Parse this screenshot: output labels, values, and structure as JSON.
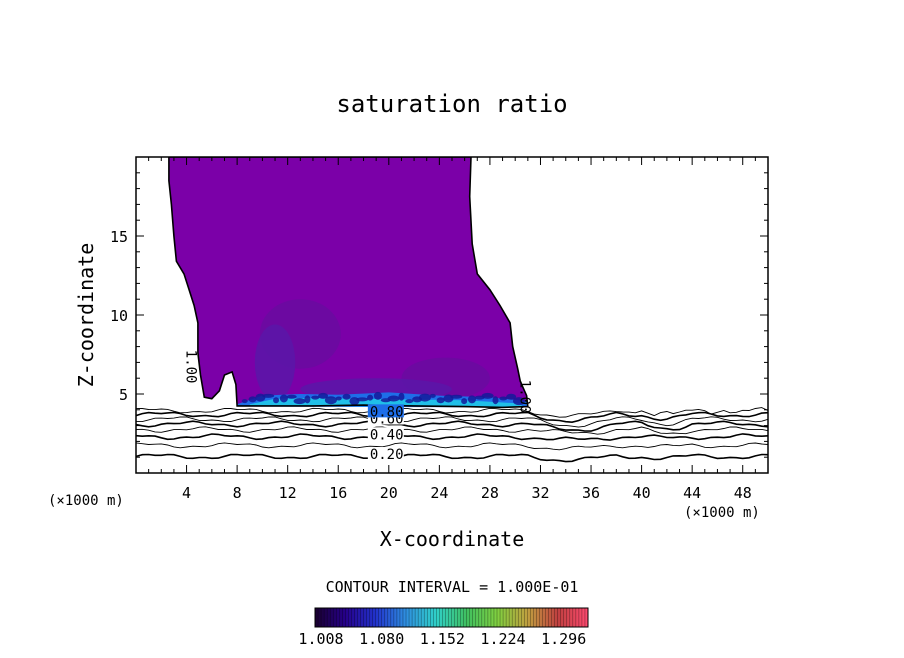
{
  "chart_data": {
    "type": "heatmap",
    "title": "saturation ratio",
    "xlabel": "X-coordinate",
    "ylabel": "Z-coordinate",
    "x_unit_label": "(×1000 m)",
    "x_unit_label_right": "(×1000 m)",
    "xlim": [
      0,
      50
    ],
    "ylim": [
      0,
      20
    ],
    "x_ticks": [
      4,
      8,
      12,
      16,
      20,
      24,
      28,
      32,
      36,
      40,
      44,
      48
    ],
    "y_ticks": [
      5,
      10,
      15
    ],
    "cloud_boundary_level": 1.0,
    "cloud_boundary_label": "1.00",
    "contour_interval_text": "CONTOUR INTERVAL = 1.000E-01",
    "contour_levels": [
      0.2,
      0.3,
      0.4,
      0.5,
      0.6,
      0.7,
      0.8,
      0.9
    ],
    "contour_labels": [
      {
        "text": "0.20",
        "x": 18.5,
        "z": 1.2
      },
      {
        "text": "0.40",
        "x": 18.5,
        "z": 2.45
      },
      {
        "text": "0.60",
        "x": 18.5,
        "z": 3.45
      },
      {
        "text": "0.80",
        "x": 18.5,
        "z": 3.9
      }
    ],
    "colorbar": {
      "min": 1.008,
      "max": 1.332,
      "tick_labels": [
        "1.008",
        "1.080",
        "1.152",
        "1.224",
        "1.296"
      ],
      "tick_values": [
        1.008,
        1.08,
        1.152,
        1.224,
        1.296
      ],
      "colors": [
        "#1a0030",
        "#26008a",
        "#2233cc",
        "#2f8fe0",
        "#30d0c8",
        "#40c060",
        "#80d040",
        "#c0a040",
        "#c04040",
        "#ff4a70"
      ]
    },
    "fill_colors": {
      "cloud_main": "#7b00a8",
      "cloud_dark": "#6a0aa0",
      "cloud_core": "#5a16a8",
      "base_blue": "#1e6ee8",
      "base_cyan": "#20c8e8",
      "base_navy": "#141a9a"
    },
    "cloud_outline": [
      [
        2.6,
        20.0
      ],
      [
        26.5,
        20.0
      ],
      [
        26.4,
        17.5
      ],
      [
        26.6,
        14.5
      ],
      [
        27.0,
        12.6
      ],
      [
        28.0,
        11.6
      ],
      [
        28.8,
        10.6
      ],
      [
        29.6,
        9.5
      ],
      [
        29.8,
        8.0
      ],
      [
        30.2,
        6.6
      ],
      [
        30.4,
        5.8
      ],
      [
        30.9,
        4.9
      ],
      [
        31.0,
        4.2
      ],
      [
        29.0,
        4.15
      ],
      [
        26.0,
        4.2
      ],
      [
        22.0,
        4.25
      ],
      [
        18.0,
        4.3
      ],
      [
        14.0,
        4.25
      ],
      [
        10.0,
        4.25
      ],
      [
        8.0,
        4.25
      ],
      [
        7.9,
        5.6
      ],
      [
        7.6,
        6.4
      ],
      [
        7.0,
        6.2
      ],
      [
        6.6,
        5.2
      ],
      [
        6.0,
        4.7
      ],
      [
        5.4,
        4.8
      ],
      [
        5.1,
        6.2
      ],
      [
        4.9,
        7.6
      ],
      [
        4.9,
        9.5
      ],
      [
        4.6,
        10.6
      ],
      [
        4.2,
        11.6
      ],
      [
        3.8,
        12.6
      ],
      [
        3.2,
        13.4
      ],
      [
        3.0,
        15.0
      ],
      [
        2.8,
        17.0
      ],
      [
        2.6,
        18.5
      ]
    ]
  }
}
